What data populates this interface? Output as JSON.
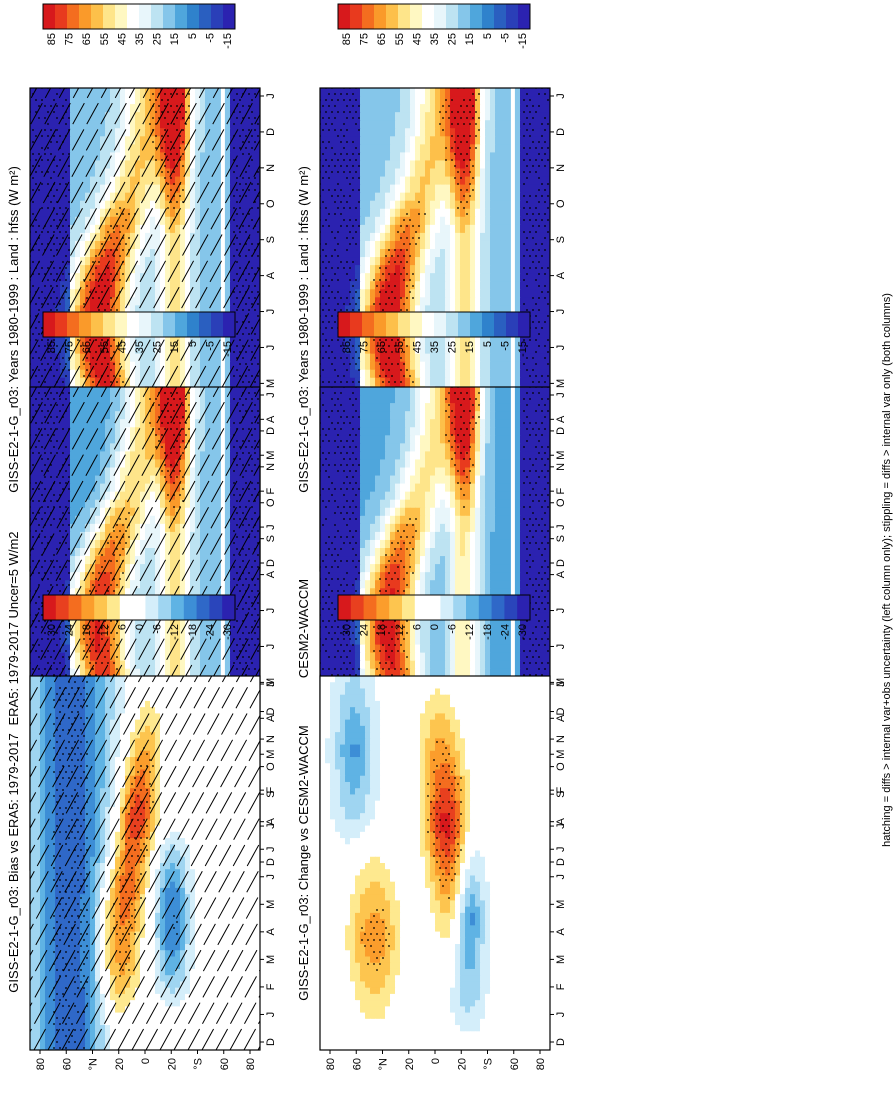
{
  "footnote": "hatching = diffs > internal var+obs uncertainty (left column only); stippling = diffs > internal var only (both columns)",
  "chart_data": [
    {
      "type": "heatmap",
      "panel": "left-top",
      "title": "GISS-E2-1-G_r03: Years 1980-1999 : Land : hfss (W m²)",
      "xlabel": "",
      "ylabel": "",
      "months": [
        "D",
        "J",
        "F",
        "M",
        "A",
        "M",
        "J",
        "J",
        "A",
        "S",
        "O",
        "N",
        "D",
        "J"
      ],
      "lat_ticks": [
        "80",
        "60",
        "°N",
        "20",
        "0",
        "20",
        "°S",
        "60",
        "80"
      ],
      "colorbar_labels": [
        "85",
        "75",
        "65",
        "55",
        "45",
        "35",
        "25",
        "15",
        "5",
        "-5",
        "-15"
      ],
      "palette": "full",
      "field": "mean",
      "hatching": true,
      "stippling": true
    },
    {
      "type": "heatmap",
      "panel": "right-top",
      "title": "GISS-E2-1-G_r03: Years 1980-1999 : Land : hfss (W m²)",
      "xlabel": "",
      "ylabel": "",
      "months": [
        "D",
        "J",
        "F",
        "M",
        "A",
        "M",
        "J",
        "J",
        "A",
        "S",
        "O",
        "N",
        "D",
        "J"
      ],
      "lat_ticks": [
        "80",
        "60",
        "°N",
        "20",
        "0",
        "20",
        "°S",
        "60",
        "80"
      ],
      "colorbar_labels": [
        "85",
        "75",
        "65",
        "55",
        "45",
        "35",
        "25",
        "15",
        "5",
        "-5",
        "-15"
      ],
      "palette": "full",
      "field": "mean",
      "hatching": false,
      "stippling": true
    },
    {
      "type": "heatmap",
      "panel": "left-middle",
      "title": "ERA5: 1979-2017 Uncer=5 W/m2",
      "xlabel": "",
      "ylabel": "",
      "months": [
        "D",
        "J",
        "F",
        "M",
        "A",
        "M",
        "J",
        "J",
        "A",
        "S",
        "O",
        "N",
        "D",
        "J"
      ],
      "lat_ticks": [
        "80",
        "60",
        "°N",
        "20",
        "0",
        "20",
        "°S",
        "60",
        "80"
      ],
      "colorbar_labels": [
        "85",
        "75",
        "65",
        "55",
        "45",
        "35",
        "25",
        "15",
        "5",
        "-5",
        "-15"
      ],
      "palette": "full",
      "field": "obs",
      "hatching": true,
      "stippling": true
    },
    {
      "type": "heatmap",
      "panel": "right-middle",
      "title": "CESM2-WACCM",
      "xlabel": "",
      "ylabel": "",
      "months": [
        "D",
        "J",
        "F",
        "M",
        "A",
        "M",
        "J",
        "J",
        "A",
        "S",
        "O",
        "N",
        "D",
        "J"
      ],
      "lat_ticks": [
        "80",
        "60",
        "°N",
        "20",
        "0",
        "20",
        "°S",
        "60",
        "80"
      ],
      "colorbar_labels": [
        "85",
        "75",
        "65",
        "55",
        "45",
        "35",
        "25",
        "15",
        "5",
        "-5",
        "-15"
      ],
      "palette": "full",
      "field": "model2",
      "hatching": false,
      "stippling": true
    },
    {
      "type": "heatmap",
      "panel": "left-bottom",
      "title": "GISS-E2-1-G_r03: Bias vs ERA5: 1979-2017",
      "xlabel": "",
      "ylabel": "",
      "months": [
        "D",
        "J",
        "F",
        "M",
        "A",
        "M",
        "J",
        "J",
        "A",
        "S",
        "O",
        "N",
        "D",
        "J"
      ],
      "lat_ticks": [
        "80",
        "60",
        "°N",
        "20",
        "0",
        "20",
        "°S",
        "60",
        "80"
      ],
      "colorbar_labels": [
        "30",
        "24",
        "18",
        "12",
        "6",
        "0",
        "-6",
        "-12",
        "-18",
        "-24",
        "-30"
      ],
      "palette": "diff",
      "field": "bias",
      "hatching": true,
      "stippling": true
    },
    {
      "type": "heatmap",
      "panel": "right-bottom",
      "title": "GISS-E2-1-G_r03: Change vs CESM2-WACCM",
      "xlabel": "",
      "ylabel": "",
      "months": [
        "D",
        "J",
        "F",
        "M",
        "A",
        "M",
        "J",
        "J",
        "A",
        "S",
        "O",
        "N",
        "D",
        "J"
      ],
      "lat_ticks": [
        "80",
        "60",
        "°N",
        "20",
        "0",
        "20",
        "°S",
        "60",
        "80"
      ],
      "colorbar_labels": [
        "30",
        "24",
        "18",
        "12",
        "6",
        "0",
        "-6",
        "-12",
        "-18",
        "-24",
        "-30"
      ],
      "palette": "diff",
      "field": "change",
      "hatching": false,
      "stippling": true
    }
  ]
}
